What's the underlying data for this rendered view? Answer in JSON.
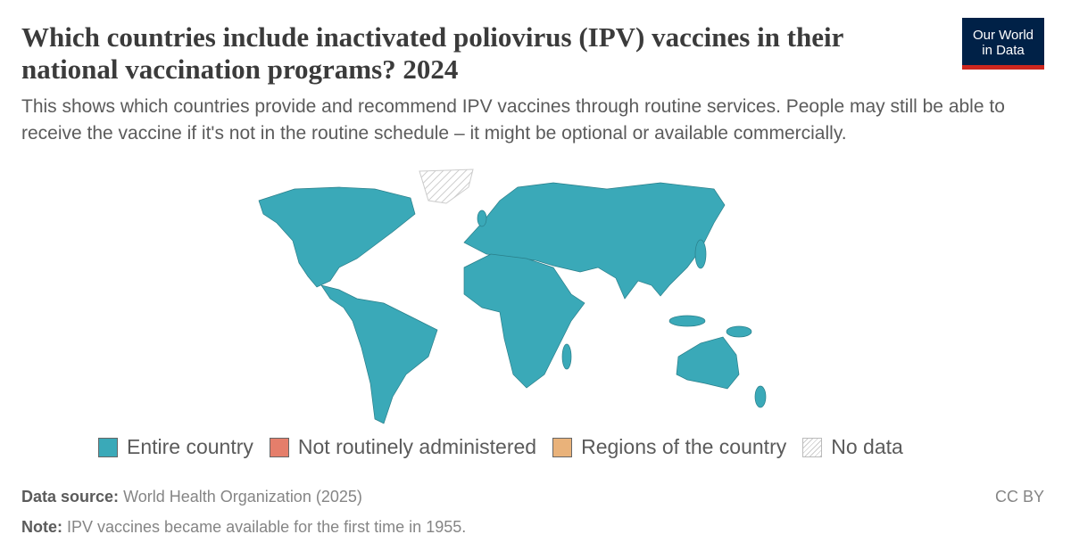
{
  "header": {
    "title": "Which countries include inactivated poliovirus (IPV) vaccines in their national vaccination programs? 2024",
    "subtitle": "This shows which countries provide and recommend IPV vaccines through routine services. People may still be able to receive the vaccine if it's not in the routine schedule – it might be optional or available commercially.",
    "logo": [
      "Our World",
      "in Data"
    ]
  },
  "legend": [
    {
      "label": "Entire country",
      "color": "#3aa9b8"
    },
    {
      "label": "Not routinely administered",
      "color": "#e57e6b"
    },
    {
      "label": "Regions of the country",
      "color": "#e9b27a"
    },
    {
      "label": "No data",
      "pattern": "hatched"
    }
  ],
  "footer": {
    "source_label": "Data source:",
    "source": "World Health Organization (2025)",
    "note_label": "Note:",
    "note": "IPV vaccines became available for the first time in 1955.",
    "license": "CC BY"
  }
}
